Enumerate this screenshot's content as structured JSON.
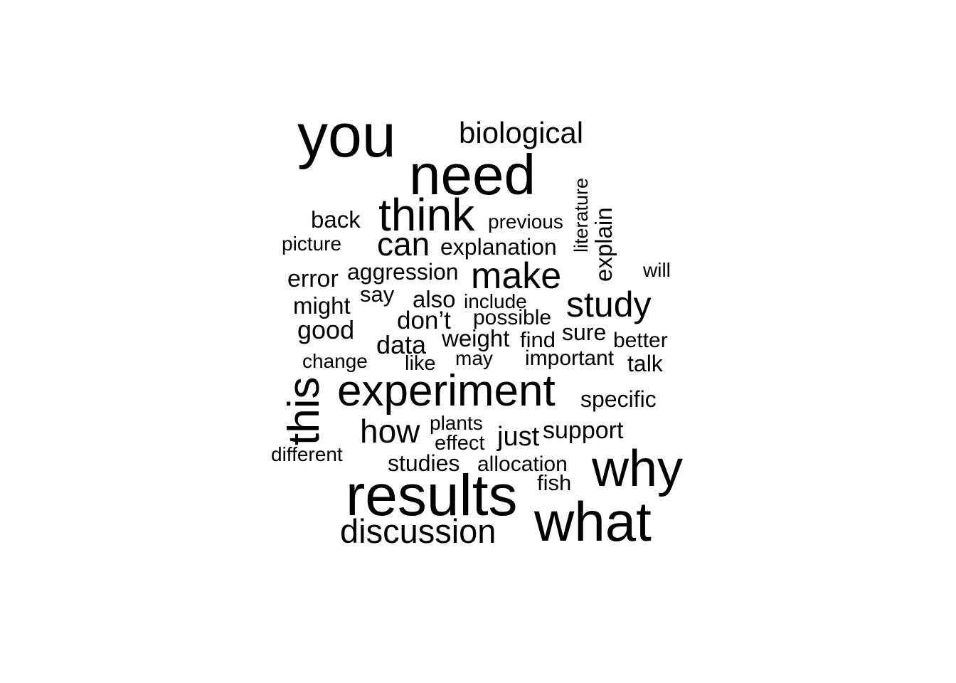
{
  "wordcloud": {
    "text_color": "#000000",
    "background_color": "#ffffff",
    "words": [
      {
        "id": "you",
        "text": "you",
        "weight": 1.0
      },
      {
        "id": "biological",
        "text": "biological",
        "weight": 0.35
      },
      {
        "id": "need",
        "text": "need",
        "weight": 0.9
      },
      {
        "id": "literature",
        "text": "literature",
        "weight": 0.25
      },
      {
        "id": "think",
        "text": "think",
        "weight": 0.75
      },
      {
        "id": "explain",
        "text": "explain",
        "weight": 0.33
      },
      {
        "id": "back",
        "text": "back",
        "weight": 0.3
      },
      {
        "id": "previous",
        "text": "previous",
        "weight": 0.25
      },
      {
        "id": "picture",
        "text": "picture",
        "weight": 0.24
      },
      {
        "id": "can",
        "text": "can",
        "weight": 0.5
      },
      {
        "id": "explanation",
        "text": "explanation",
        "weight": 0.3
      },
      {
        "id": "will",
        "text": "will",
        "weight": 0.25
      },
      {
        "id": "error",
        "text": "error",
        "weight": 0.3
      },
      {
        "id": "aggression",
        "text": "aggression",
        "weight": 0.3
      },
      {
        "id": "make",
        "text": "make",
        "weight": 0.55
      },
      {
        "id": "say",
        "text": "say",
        "weight": 0.28
      },
      {
        "id": "also",
        "text": "also",
        "weight": 0.3
      },
      {
        "id": "include",
        "text": "include",
        "weight": 0.25
      },
      {
        "id": "study",
        "text": "study",
        "weight": 0.55
      },
      {
        "id": "might",
        "text": "might",
        "weight": 0.3
      },
      {
        "id": "possible",
        "text": "possible",
        "weight": 0.27
      },
      {
        "id": "dont",
        "text": "don’t",
        "weight": 0.32
      },
      {
        "id": "good",
        "text": "good",
        "weight": 0.33
      },
      {
        "id": "sure",
        "text": "sure",
        "weight": 0.28
      },
      {
        "id": "weight",
        "text": "weight",
        "weight": 0.3
      },
      {
        "id": "find",
        "text": "find",
        "weight": 0.28
      },
      {
        "id": "better",
        "text": "better",
        "weight": 0.27
      },
      {
        "id": "data",
        "text": "data",
        "weight": 0.33
      },
      {
        "id": "change",
        "text": "change",
        "weight": 0.25
      },
      {
        "id": "may",
        "text": "may",
        "weight": 0.25
      },
      {
        "id": "important",
        "text": "important",
        "weight": 0.27
      },
      {
        "id": "talk",
        "text": "talk",
        "weight": 0.28
      },
      {
        "id": "like",
        "text": "like",
        "weight": 0.26
      },
      {
        "id": "this",
        "text": "this",
        "weight": 0.7
      },
      {
        "id": "experiment",
        "text": "experiment",
        "weight": 0.7
      },
      {
        "id": "specific",
        "text": "specific",
        "weight": 0.28
      },
      {
        "id": "how",
        "text": "how",
        "weight": 0.45
      },
      {
        "id": "plants",
        "text": "plants",
        "weight": 0.25
      },
      {
        "id": "support",
        "text": "support",
        "weight": 0.3
      },
      {
        "id": "just",
        "text": "just",
        "weight": 0.35
      },
      {
        "id": "effect",
        "text": "effect",
        "weight": 0.25
      },
      {
        "id": "different",
        "text": "different",
        "weight": 0.25
      },
      {
        "id": "studies",
        "text": "studies",
        "weight": 0.3
      },
      {
        "id": "allocation",
        "text": "allocation",
        "weight": 0.28
      },
      {
        "id": "why",
        "text": "why",
        "weight": 0.8
      },
      {
        "id": "fish",
        "text": "fish",
        "weight": 0.27
      },
      {
        "id": "results",
        "text": "results",
        "weight": 0.95
      },
      {
        "id": "what",
        "text": "what",
        "weight": 0.85
      },
      {
        "id": "discussion",
        "text": "discussion",
        "weight": 0.5
      }
    ]
  }
}
